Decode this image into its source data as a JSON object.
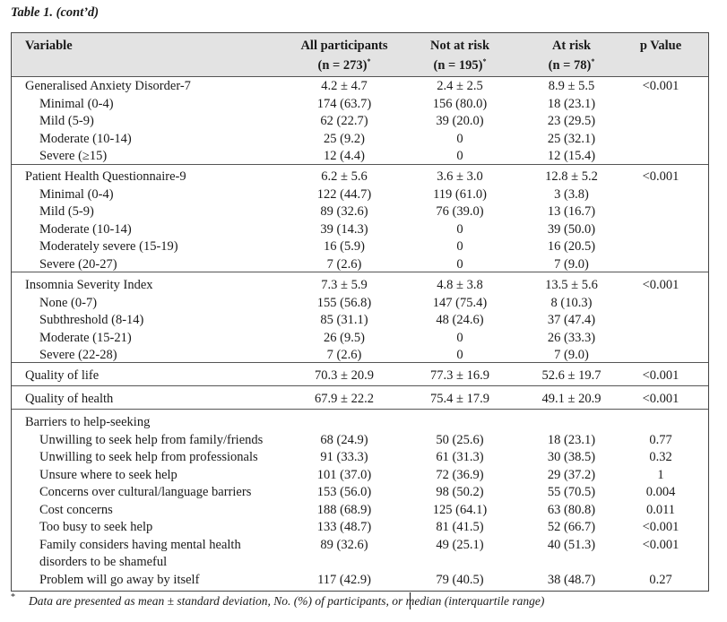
{
  "caption": "Table 1. (cont’d)",
  "headers": {
    "variable": "Variable",
    "all": {
      "title": "All participants",
      "n": "(n = 273)"
    },
    "not_at_risk": {
      "title": "Not at risk",
      "n": "(n = 195)"
    },
    "at_risk": {
      "title": "At risk",
      "n": "(n = 78)"
    },
    "p_value": "p Value",
    "footnote_mark": "*"
  },
  "sections": [
    {
      "rows": [
        {
          "label": "Generalised Anxiety Disorder-7",
          "all": "4.2 ± 4.7",
          "nar": "2.4 ± 2.5",
          "ar": "8.9 ± 5.5",
          "p": "<0.001"
        },
        {
          "label": "Minimal (0-4)",
          "all": "174 (63.7)",
          "nar": "156 (80.0)",
          "ar": "18 (23.1)",
          "p": ""
        },
        {
          "label": "Mild (5-9)",
          "all": "62 (22.7)",
          "nar": "39 (20.0)",
          "ar": "23 (29.5)",
          "p": ""
        },
        {
          "label": "Moderate (10-14)",
          "all": "25 (9.2)",
          "nar": "0",
          "ar": "25 (32.1)",
          "p": ""
        },
        {
          "label": "Severe (≥15)",
          "all": "12 (4.4)",
          "nar": "0",
          "ar": "12 (15.4)",
          "p": ""
        }
      ]
    },
    {
      "rows": [
        {
          "label": "Patient Health Questionnaire-9",
          "all": "6.2 ± 5.6",
          "nar": "3.6 ± 3.0",
          "ar": "12.8 ± 5.2",
          "p": "<0.001"
        },
        {
          "label": "Minimal (0-4)",
          "all": "122 (44.7)",
          "nar": "119 (61.0)",
          "ar": "3 (3.8)",
          "p": ""
        },
        {
          "label": "Mild (5-9)",
          "all": "89 (32.6)",
          "nar": "76 (39.0)",
          "ar": "13 (16.7)",
          "p": ""
        },
        {
          "label": "Moderate (10-14)",
          "all": "39 (14.3)",
          "nar": "0",
          "ar": "39 (50.0)",
          "p": ""
        },
        {
          "label": "Moderately severe (15-19)",
          "all": "16 (5.9)",
          "nar": "0",
          "ar": "16 (20.5)",
          "p": ""
        },
        {
          "label": "Severe (20-27)",
          "all": "7 (2.6)",
          "nar": "0",
          "ar": "7 (9.0)",
          "p": ""
        }
      ]
    },
    {
      "rows": [
        {
          "label": "Insomnia Severity Index",
          "all": "7.3 ± 5.9",
          "nar": "4.8 ± 3.8",
          "ar": "13.5 ± 5.6",
          "p": "<0.001"
        },
        {
          "label": "None (0-7)",
          "all": "155 (56.8)",
          "nar": "147 (75.4)",
          "ar": "8 (10.3)",
          "p": ""
        },
        {
          "label": "Subthreshold (8-14)",
          "all": "85 (31.1)",
          "nar": "48 (24.6)",
          "ar": "37 (47.4)",
          "p": ""
        },
        {
          "label": "Moderate (15-21)",
          "all": "26 (9.5)",
          "nar": "0",
          "ar": "26 (33.3)",
          "p": ""
        },
        {
          "label": "Severe (22-28)",
          "all": "7 (2.6)",
          "nar": "0",
          "ar": "7 (9.0)",
          "p": ""
        }
      ]
    },
    {
      "rows": [
        {
          "label": "Quality of life",
          "all": "70.3 ± 20.9",
          "nar": "77.3 ± 16.9",
          "ar": "52.6 ± 19.7",
          "p": "<0.001"
        }
      ]
    },
    {
      "rows": [
        {
          "label": "Quality of health",
          "all": "67.9 ± 22.2",
          "nar": "75.4 ± 17.9",
          "ar": "49.1 ± 20.9",
          "p": "<0.001"
        }
      ]
    },
    {
      "rows": [
        {
          "label": "Barriers to help-seeking",
          "all": "",
          "nar": "",
          "ar": "",
          "p": ""
        },
        {
          "label": "Unwilling to seek help from family/friends",
          "all": "68 (24.9)",
          "nar": "50 (25.6)",
          "ar": "18 (23.1)",
          "p": "0.77"
        },
        {
          "label": "Unwilling to seek help from professionals",
          "all": "91 (33.3)",
          "nar": "61 (31.3)",
          "ar": "30 (38.5)",
          "p": "0.32"
        },
        {
          "label": "Unsure where to seek help",
          "all": "101 (37.0)",
          "nar": "72 (36.9)",
          "ar": "29 (37.2)",
          "p": "1"
        },
        {
          "label": "Concerns over cultural/language barriers",
          "all": "153 (56.0)",
          "nar": "98 (50.2)",
          "ar": "55 (70.5)",
          "p": "0.004"
        },
        {
          "label": "Cost concerns",
          "all": "188 (68.9)",
          "nar": "125 (64.1)",
          "ar": "63 (80.8)",
          "p": "0.011"
        },
        {
          "label": "Too busy to seek help",
          "all": "133 (48.7)",
          "nar": "81 (41.5)",
          "ar": "52 (66.7)",
          "p": "<0.001"
        },
        {
          "label": "Family considers having mental health",
          "all": "89 (32.6)",
          "nar": "49 (25.1)",
          "ar": "40 (51.3)",
          "p": "<0.001"
        },
        {
          "label": "disorders to be shameful",
          "all": "",
          "nar": "",
          "ar": "",
          "p": ""
        },
        {
          "label": "Problem will go away by itself",
          "all": "117 (42.9)",
          "nar": "79 (40.5)",
          "ar": "38 (48.7)",
          "p": "0.27"
        }
      ]
    }
  ],
  "footnote": {
    "mark": "*",
    "text": "Data are presented as mean ± standard deviation, No. (%) of participants, or median (interquartile range)"
  }
}
